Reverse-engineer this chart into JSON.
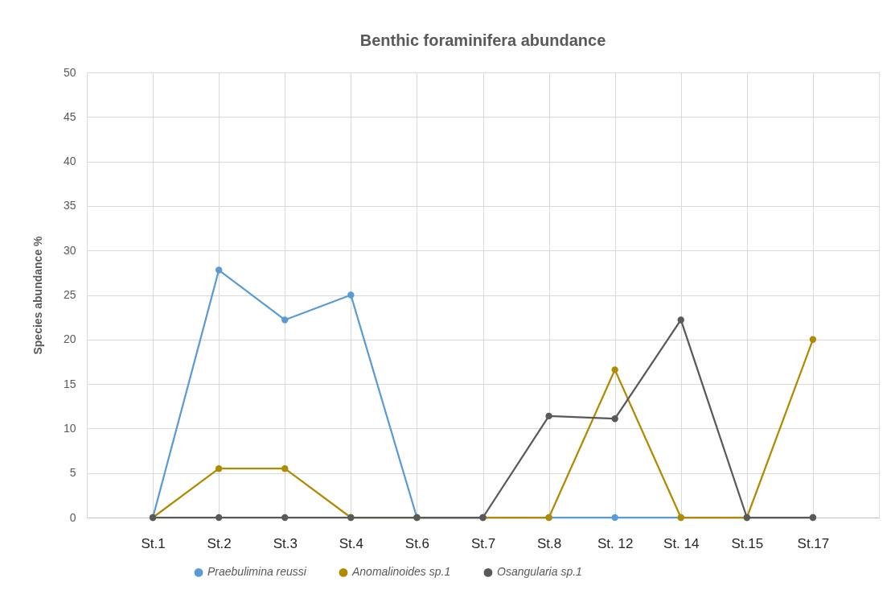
{
  "chart_data": {
    "type": "line",
    "title": "Benthic foraminifera abundance",
    "ylabel": "Species abundance %",
    "categories": [
      "St.1",
      "St.2",
      "St.3",
      "St.4",
      "St.6",
      "St.7",
      "St.8",
      "St. 12",
      "St. 14",
      "St.15",
      "St.17"
    ],
    "series": [
      {
        "name": "Praebulimina reussi",
        "color": "#5b9bd5",
        "values": [
          0,
          27.8,
          22.2,
          25,
          0,
          0,
          0,
          0,
          0,
          0,
          0
        ]
      },
      {
        "name": "Anomalinoides sp.1",
        "color": "#b08a00",
        "values": [
          0,
          5.5,
          5.5,
          0,
          0,
          0,
          0,
          16.6,
          0,
          0,
          20
        ]
      },
      {
        "name": "Osangularia sp.1",
        "color": "#595959",
        "values": [
          0,
          0,
          0,
          0,
          0,
          0,
          11.4,
          11.1,
          22.2,
          0,
          0
        ]
      }
    ],
    "ylim": [
      0,
      50
    ],
    "yticks": [
      0,
      5,
      10,
      15,
      20,
      25,
      30,
      35,
      40,
      45,
      50
    ],
    "grid": true,
    "legend": "bottom",
    "marker": "circle",
    "line_style": "solid"
  }
}
